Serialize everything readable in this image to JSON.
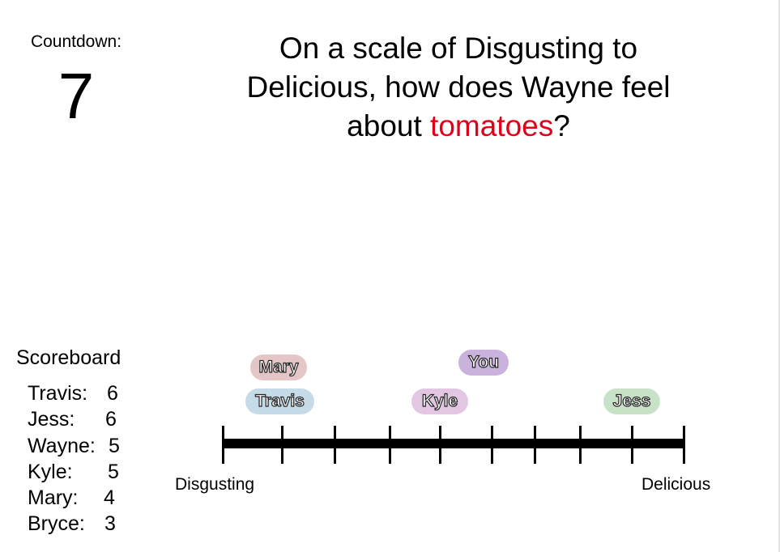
{
  "countdown": {
    "label": "Countdown:",
    "value": "7"
  },
  "question": {
    "prefix": "On a scale of Disgusting to Delicious, how does Wayne feel about",
    "highlight": "tomatoes",
    "suffix": "?",
    "highlight_color": "#e0001b"
  },
  "scoreboard": {
    "title": "Scoreboard",
    "entries": [
      {
        "name": "Travis:",
        "score": "6"
      },
      {
        "name": "Jess:",
        "score": "6"
      },
      {
        "name": "Wayne:",
        "score": "5"
      },
      {
        "name": "Kyle:",
        "score": "5"
      },
      {
        "name": "Mary:",
        "score": "4"
      },
      {
        "name": "Bryce:",
        "score": "3"
      }
    ]
  },
  "scale": {
    "min_label": "Disgusting",
    "max_label": "Delicious"
  },
  "guesses": [
    {
      "player": "Mary",
      "color": "#e4c6c6"
    },
    {
      "player": "Travis",
      "color": "#c6dbe8"
    },
    {
      "player": "You",
      "color": "#c9b2dc"
    },
    {
      "player": "Kyle",
      "color": "#e3c6e2"
    },
    {
      "player": "Jess",
      "color": "#c8e2c8"
    }
  ]
}
